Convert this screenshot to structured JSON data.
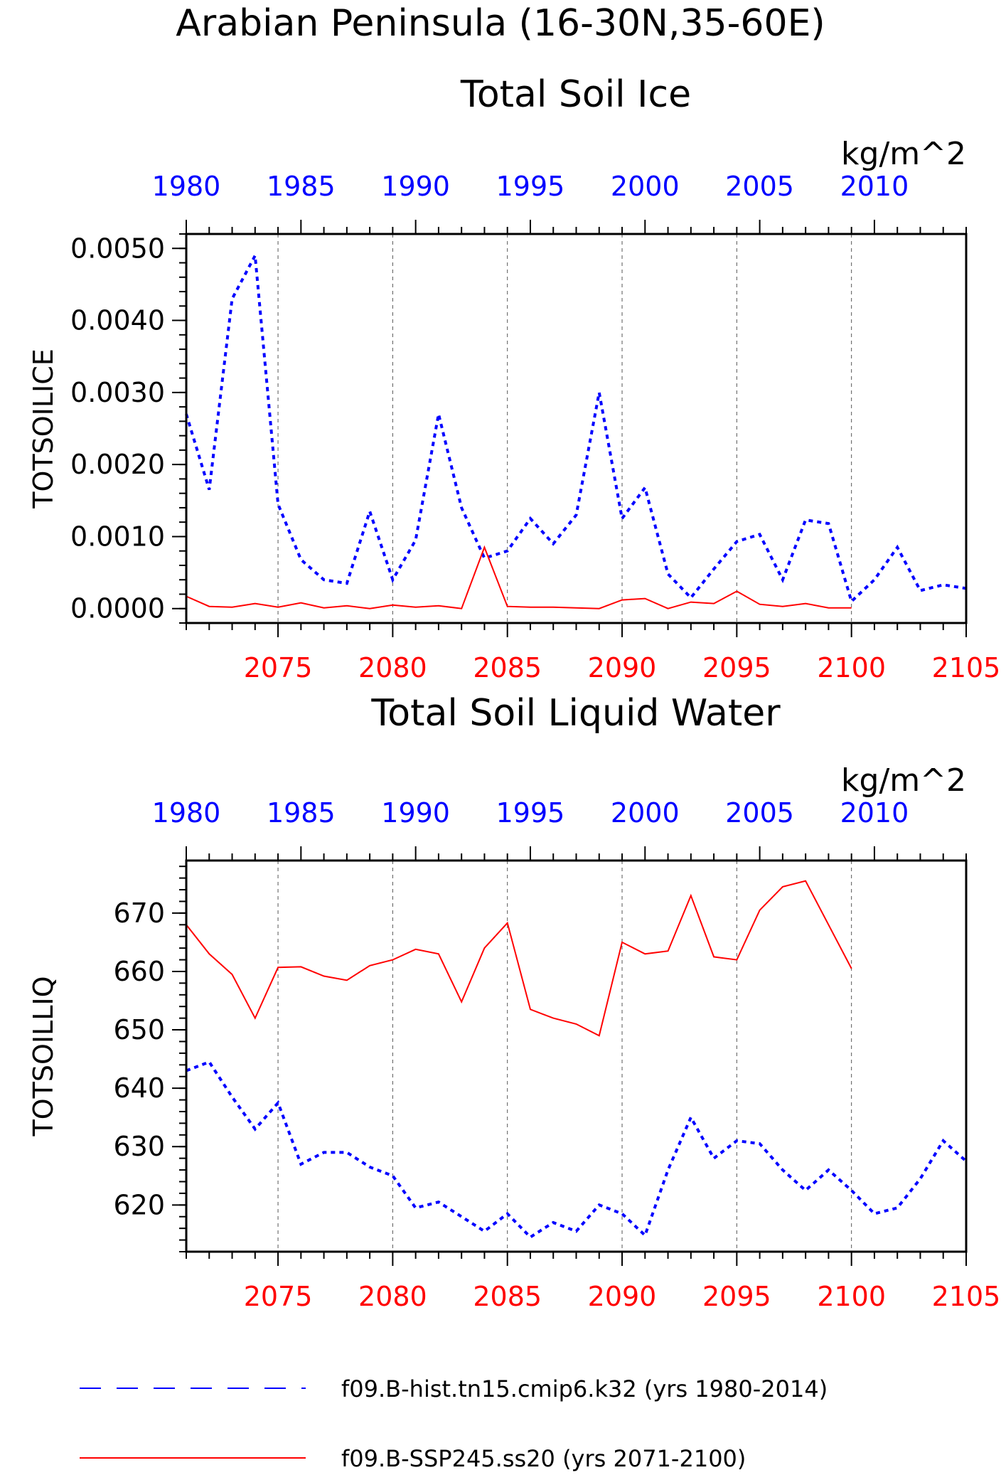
{
  "figure": {
    "title_line1": "Arabian Peninsula (16-30N,35-60E)"
  },
  "legend": {
    "entries": [
      {
        "label": "f09.B-hist.tn15.cmip6.k32 (yrs 1980-2014)",
        "color": "#0000ff",
        "style": "dashed"
      },
      {
        "label": "f09.B-SSP245.ss20 (yrs 2071-2100)",
        "color": "#ff0000",
        "style": "solid"
      }
    ]
  },
  "chart_data": [
    {
      "type": "line",
      "title": "Total Soil Ice",
      "units": "kg/m^2",
      "ylabel": "TOTSOILICE",
      "ylim": [
        -0.0002,
        0.0052
      ],
      "yticks": [
        "0.0000",
        "0.0010",
        "0.0020",
        "0.0030",
        "0.0040",
        "0.0050"
      ],
      "top_axis": {
        "range": [
          1980,
          2014
        ],
        "ticks": [
          "1980",
          "1985",
          "1990",
          "1995",
          "2000",
          "2005",
          "2010"
        ],
        "color": "#0000ff"
      },
      "bottom_axis": {
        "range": [
          2071,
          2105
        ],
        "ticks": [
          "2075",
          "2080",
          "2085",
          "2090",
          "2095",
          "2100",
          "2105"
        ],
        "color": "#ff0000"
      },
      "grid": "vertical dashed at 5-year marks",
      "series": [
        {
          "x_axis": "top",
          "color": "#0000ff",
          "style": "dashed",
          "x": [
            1980,
            1981,
            1982,
            1983,
            1984,
            1985,
            1986,
            1987,
            1988,
            1989,
            1990,
            1991,
            1992,
            1993,
            1994,
            1995,
            1996,
            1997,
            1998,
            1999,
            2000,
            2001,
            2002,
            2003,
            2004,
            2005,
            2006,
            2007,
            2008,
            2009,
            2010,
            2011,
            2012,
            2013,
            2014
          ],
          "values": [
            0.0027,
            0.00165,
            0.0043,
            0.0049,
            0.00145,
            0.00068,
            0.0004,
            0.00035,
            0.00135,
            0.0004,
            0.00095,
            0.0027,
            0.0014,
            0.0007,
            0.0008,
            0.00125,
            0.0009,
            0.0013,
            0.003,
            0.00125,
            0.00168,
            0.00048,
            0.00015,
            0.00055,
            0.00093,
            0.00103,
            0.0004,
            0.00123,
            0.00118,
            0.0001,
            0.0004,
            0.00085,
            0.00025,
            0.00033,
            0.00028
          ]
        },
        {
          "x_axis": "bottom",
          "color": "#ff0000",
          "style": "solid",
          "x": [
            2071,
            2072,
            2073,
            2074,
            2075,
            2076,
            2077,
            2078,
            2079,
            2080,
            2081,
            2082,
            2083,
            2084,
            2085,
            2086,
            2087,
            2088,
            2089,
            2090,
            2091,
            2092,
            2093,
            2094,
            2095,
            2096,
            2097,
            2098,
            2099,
            2100
          ],
          "values": [
            0.00017,
            3e-05,
            2e-05,
            7e-05,
            2e-05,
            8e-05,
            1e-05,
            4e-05,
            0.0,
            5e-05,
            2e-05,
            4e-05,
            0.0,
            0.00085,
            3e-05,
            2e-05,
            2e-05,
            1e-05,
            0.0,
            0.00012,
            0.00014,
            0.0,
            9e-05,
            7e-05,
            0.00024,
            6e-05,
            3e-05,
            7e-05,
            1e-05,
            1e-05
          ]
        }
      ]
    },
    {
      "type": "line",
      "title": "Total Soil Liquid Water",
      "units": "kg/m^2",
      "ylabel": "TOTSOILLIQ",
      "ylim": [
        612,
        679
      ],
      "yticks": [
        "620",
        "630",
        "640",
        "650",
        "660",
        "670"
      ],
      "top_axis": {
        "range": [
          1980,
          2014
        ],
        "ticks": [
          "1980",
          "1985",
          "1990",
          "1995",
          "2000",
          "2005",
          "2010"
        ],
        "color": "#0000ff"
      },
      "bottom_axis": {
        "range": [
          2071,
          2105
        ],
        "ticks": [
          "2075",
          "2080",
          "2085",
          "2090",
          "2095",
          "2100",
          "2105"
        ],
        "color": "#ff0000"
      },
      "grid": "vertical dashed at 5-year marks",
      "series": [
        {
          "x_axis": "top",
          "color": "#0000ff",
          "style": "dashed",
          "x": [
            1980,
            1981,
            1982,
            1983,
            1984,
            1985,
            1986,
            1987,
            1988,
            1989,
            1990,
            1991,
            1992,
            1993,
            1994,
            1995,
            1996,
            1997,
            1998,
            1999,
            2000,
            2001,
            2002,
            2003,
            2004,
            2005,
            2006,
            2007,
            2008,
            2009,
            2010,
            2011,
            2012,
            2013,
            2014
          ],
          "values": [
            643,
            644.5,
            638.5,
            633,
            637.5,
            627,
            629,
            629,
            626.5,
            625,
            619.5,
            620.5,
            618,
            615.5,
            618.5,
            614.5,
            617,
            615.5,
            620,
            618.5,
            614.8,
            626,
            635,
            628,
            631,
            630.5,
            626,
            622.5,
            626,
            622.5,
            618.5,
            619.5,
            624.5,
            631,
            627.5
          ]
        },
        {
          "x_axis": "bottom",
          "color": "#ff0000",
          "style": "solid",
          "x": [
            2071,
            2072,
            2073,
            2074,
            2075,
            2076,
            2077,
            2078,
            2079,
            2080,
            2081,
            2082,
            2083,
            2084,
            2085,
            2086,
            2087,
            2088,
            2089,
            2090,
            2091,
            2092,
            2093,
            2094,
            2095,
            2096,
            2097,
            2098,
            2099,
            2100
          ],
          "values": [
            668,
            663,
            659.5,
            652,
            660.7,
            660.8,
            659.2,
            658.5,
            661,
            662,
            663.8,
            663,
            654.8,
            664,
            668.3,
            653.5,
            652,
            651,
            649,
            665,
            663,
            663.5,
            673,
            662.5,
            662,
            670.5,
            674.5,
            675.5,
            668,
            660.5
          ]
        }
      ]
    }
  ]
}
